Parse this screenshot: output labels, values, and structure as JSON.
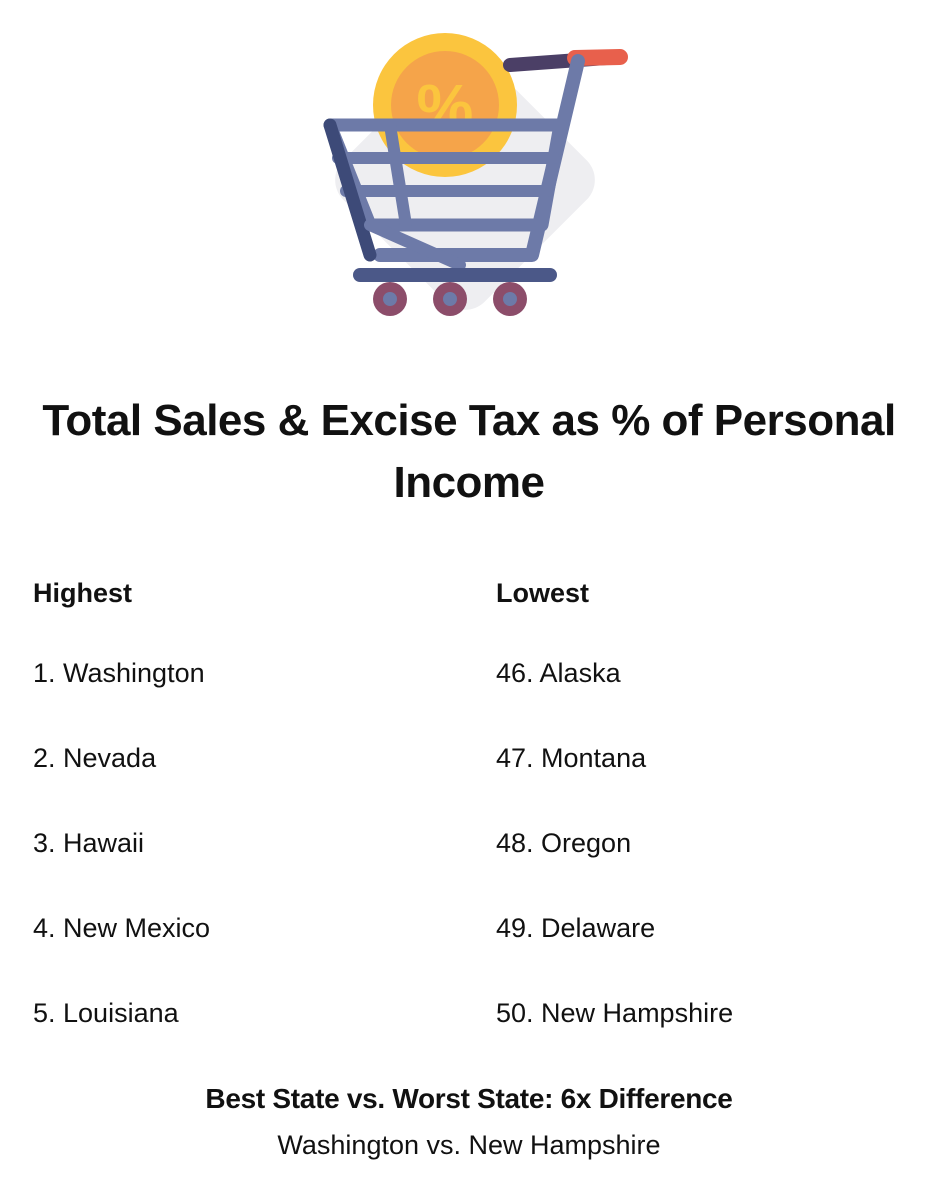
{
  "hero": {
    "icon": "shopping-cart-percent-icon",
    "coin_symbol": "%",
    "colors": {
      "cart": "#6d7aa8",
      "cart_dark": "#3d4a78",
      "coin": "#fbc53e",
      "coin_inner": "#f39a44",
      "handle": "#e8604c",
      "wheel": "#8c4d6a"
    }
  },
  "title": "Total Sales & Excise Tax as % of Personal Income",
  "highest": {
    "heading": "Highest",
    "items": [
      "1. Washington",
      "2. Nevada",
      "3. Hawaii",
      "4. New Mexico",
      "5. Louisiana"
    ]
  },
  "lowest": {
    "heading": "Lowest",
    "items": [
      "46. Alaska",
      "47. Montana",
      "48. Oregon",
      "49. Delaware",
      "50. New Hampshire"
    ]
  },
  "footer": {
    "title": "Best State vs. Worst State: 6x Difference",
    "subtitle": "Washington vs. New Hampshire"
  }
}
